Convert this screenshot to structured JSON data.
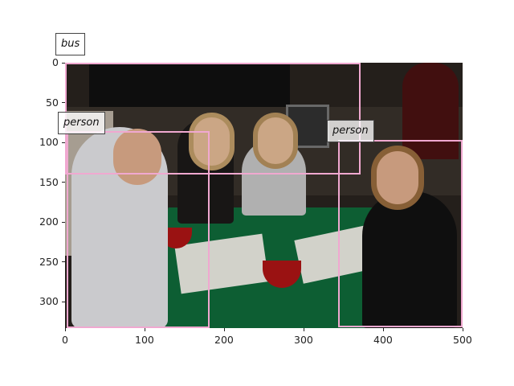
{
  "image": {
    "description_visible": false
  },
  "axes": {
    "x_ticks": [
      "0",
      "100",
      "200",
      "300",
      "400",
      "500"
    ],
    "y_ticks": [
      "0",
      "50",
      "100",
      "150",
      "200",
      "250",
      "300"
    ],
    "xlim": [
      0,
      500
    ],
    "ylim_inverted": [
      333,
      0
    ]
  },
  "detections": [
    {
      "label": "bus",
      "x0": 0,
      "y0": 0,
      "x1": 372,
      "y1": 140
    },
    {
      "label": "person",
      "x0": 2,
      "y0": 86,
      "x1": 182,
      "y1": 333
    },
    {
      "label": "person",
      "x0": 343,
      "y0": 97,
      "x1": 500,
      "y1": 332
    }
  ],
  "colors": {
    "box": "#f0a8d0",
    "table": "#0f6b3b",
    "background": "#ffffff"
  }
}
